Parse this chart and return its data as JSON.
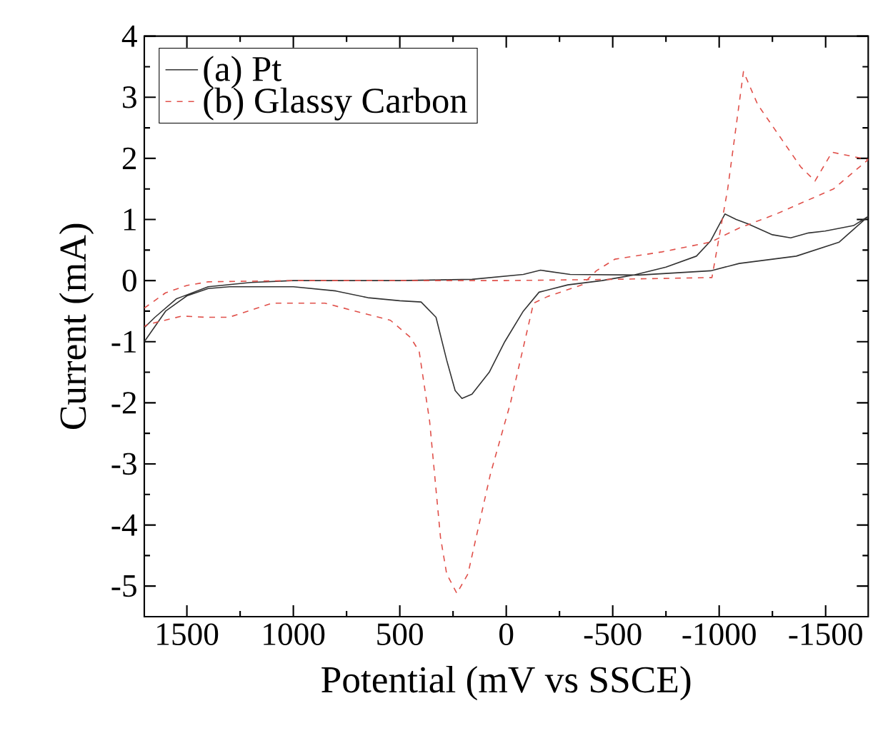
{
  "chart_data": {
    "type": "line",
    "xlabel": "Potential (mV vs SSCE)",
    "ylabel": "Current (mA)",
    "xlim": [
      1700,
      -1700
    ],
    "ylim": [
      -5.5,
      4
    ],
    "xticks": [
      1500,
      1000,
      500,
      0,
      -500,
      -1000,
      -1500
    ],
    "yticks": [
      -5,
      -4,
      -3,
      -2,
      -1,
      0,
      1,
      2,
      3,
      4
    ],
    "legend": "top left",
    "grid": false,
    "marker": "none",
    "series": [
      {
        "name": "(a) Pt",
        "color": "#333333",
        "line_style": "solid",
        "x": [
          1700,
          1600,
          1500,
          1400,
          1300,
          1000,
          800,
          650,
          500,
          400,
          330,
          280,
          240,
          208,
          161,
          80,
          7,
          -80,
          -154,
          -289,
          -450,
          -597,
          -750,
          -893,
          -960,
          -1027,
          -1080,
          -1134,
          -1250,
          -1336,
          -1420,
          -1497,
          -1631,
          -1700,
          -1564,
          -1362,
          -1094,
          -960,
          -624,
          -300,
          -161,
          -80,
          161,
          500,
          1000,
          1200,
          1400,
          1550,
          1650,
          1700
        ],
        "values": [
          -1.0,
          -0.5,
          -0.25,
          -0.13,
          -0.1,
          -0.1,
          -0.17,
          -0.28,
          -0.33,
          -0.35,
          -0.6,
          -1.3,
          -1.8,
          -1.93,
          -1.86,
          -1.5,
          -1.0,
          -0.5,
          -0.19,
          -0.07,
          0.0,
          0.09,
          0.22,
          0.4,
          0.65,
          1.09,
          1.0,
          0.93,
          0.75,
          0.7,
          0.78,
          0.81,
          0.9,
          1.05,
          0.63,
          0.4,
          0.28,
          0.16,
          0.09,
          0.1,
          0.17,
          0.1,
          0.02,
          0.0,
          0.0,
          -0.03,
          -0.1,
          -0.3,
          -0.6,
          -0.77
        ]
      },
      {
        "name": "(b) Glassy Carbon",
        "color": "#e0504a",
        "line_style": "dashed",
        "x": [
          1700,
          1600,
          1500,
          1400,
          1000,
          0,
          -500,
          -966,
          -1040,
          -1114,
          -1181,
          -1383,
          -1450,
          -1530,
          -1700,
          -1537,
          -1268,
          -1094,
          -960,
          -732,
          -510,
          -423,
          -356,
          -195,
          -128,
          -20,
          74,
          180,
          232,
          280,
          309,
          360,
          409,
          450,
          544,
          852,
          1100,
          1302,
          1416,
          1523,
          1685,
          1700
        ],
        "values": [
          -0.45,
          -0.2,
          -0.08,
          -0.02,
          0.0,
          0.0,
          0.02,
          0.05,
          1.5,
          3.42,
          2.88,
          1.86,
          1.63,
          2.1,
          1.98,
          1.5,
          1.09,
          0.86,
          0.63,
          0.47,
          0.35,
          0.16,
          -0.07,
          -0.26,
          -0.37,
          -2.0,
          -3.16,
          -4.8,
          -5.12,
          -4.8,
          -4.2,
          -2.3,
          -1.16,
          -0.93,
          -0.65,
          -0.37,
          -0.37,
          -0.6,
          -0.6,
          -0.58,
          -0.72,
          -0.75
        ]
      }
    ]
  }
}
